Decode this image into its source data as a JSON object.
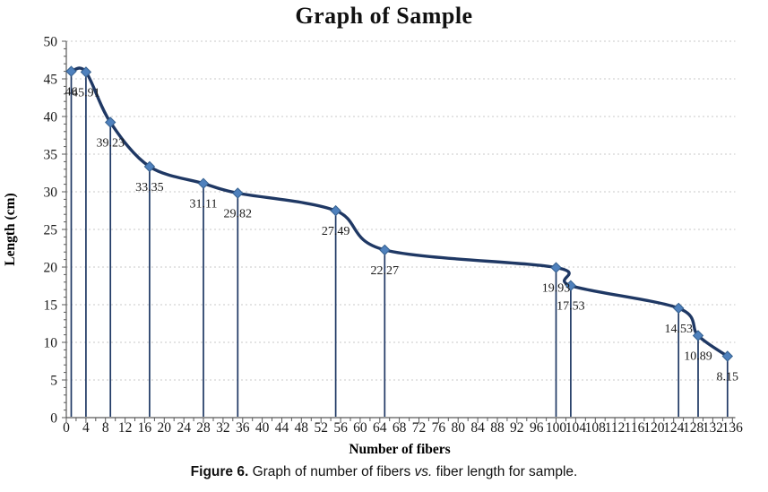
{
  "page": {
    "background": "#FFFFFF"
  },
  "chart_data": {
    "type": "line",
    "title": "Graph of Sample",
    "xlabel": "Number of fibers",
    "ylabel": "Length (cm)",
    "xlim": [
      0,
      136
    ],
    "ylim": [
      0,
      50
    ],
    "x_ticks": [
      0,
      4,
      8,
      12,
      16,
      20,
      24,
      28,
      32,
      36,
      40,
      44,
      48,
      52,
      56,
      60,
      64,
      68,
      72,
      76,
      80,
      84,
      88,
      92,
      96,
      100,
      104,
      108,
      112,
      116,
      120,
      124,
      128,
      132,
      136
    ],
    "y_ticks": [
      0,
      5,
      10,
      15,
      20,
      25,
      30,
      35,
      40,
      45,
      50
    ],
    "x_minor_tick_step": 2,
    "y_minor_tick_step": 1,
    "grid": "horizontal-dashed",
    "legend": "none",
    "smooth": true,
    "drop_lines": true,
    "marker": "diamond",
    "points": [
      {
        "x": 1,
        "y": 46,
        "label": "46"
      },
      {
        "x": 4,
        "y": 45.91,
        "label": "45.91"
      },
      {
        "x": 9,
        "y": 39.23,
        "label": "39.23"
      },
      {
        "x": 17,
        "y": 33.35,
        "label": "33.35"
      },
      {
        "x": 28,
        "y": 31.11,
        "label": "31.11"
      },
      {
        "x": 35,
        "y": 29.82,
        "label": "29.82"
      },
      {
        "x": 55,
        "y": 27.49,
        "label": "27.49"
      },
      {
        "x": 65,
        "y": 22.27,
        "label": "22.27"
      },
      {
        "x": 100,
        "y": 19.93,
        "label": "19.93"
      },
      {
        "x": 103,
        "y": 17.53,
        "label": "17.53"
      },
      {
        "x": 125,
        "y": 14.53,
        "label": "14.53"
      },
      {
        "x": 129,
        "y": 10.89,
        "label": "10.89"
      },
      {
        "x": 135,
        "y": 8.15,
        "label": "8.15"
      }
    ],
    "colors": {
      "line": "#1F3864",
      "marker_fill": "#4F81BD",
      "marker_stroke": "#35608F",
      "drop_line": "#1F3864",
      "grid": "#C9C9C9",
      "axis": "#595959",
      "text": "#1A1A1A"
    }
  },
  "caption": {
    "figure_label": "Figure 6.",
    "text_before_vs": "Graph of number of fibers",
    "vs": "vs.",
    "text_after_vs": "fiber length for sample."
  }
}
